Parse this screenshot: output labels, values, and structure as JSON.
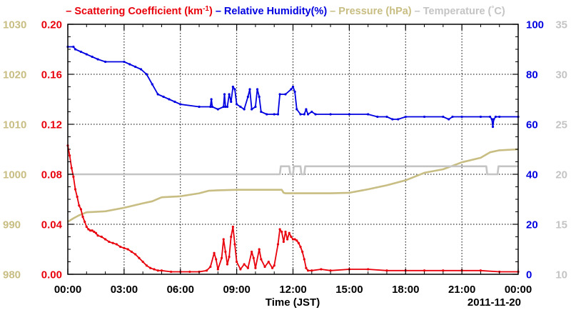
{
  "chart_data": {
    "type": "line",
    "xlabel": "Time (JST)",
    "date_label": "2011-11-20",
    "x_ticks": [
      "00:00",
      "03:00",
      "06:00",
      "09:00",
      "12:00",
      "15:00",
      "18:00",
      "21:00",
      "00:00"
    ],
    "xlim_hours": [
      0,
      24
    ],
    "grid": true,
    "legend": {
      "placement": "top",
      "items": [
        {
          "label": "Scattering Coefficient (km",
          "sup": "-1",
          "suffix": ")",
          "color": "#e8000b"
        },
        {
          "label": "Relative Humidity(%)",
          "color": "#0000e0"
        },
        {
          "label": "Pressure (hPa)",
          "color": "#c8bd82"
        },
        {
          "label": "Temperature (",
          "sup": "°",
          "suffix": "C)",
          "color": "#c4c4c4"
        }
      ],
      "dash": "–"
    },
    "axes": {
      "pressure": {
        "side": "left-outer",
        "color": "#c8bd82",
        "ylim": [
          980,
          1030
        ],
        "ticks": [
          "980",
          "990",
          "1000",
          "1010",
          "1020",
          "1030"
        ]
      },
      "scattering": {
        "side": "left-inner",
        "color": "#e8000b",
        "ylim": [
          0,
          0.2
        ],
        "ticks": [
          "0.00",
          "0.04",
          "0.08",
          "0.12",
          "0.16",
          "0.20"
        ]
      },
      "humidity": {
        "side": "right-inner",
        "color": "#0000e0",
        "ylim": [
          0,
          100
        ],
        "ticks": [
          "0",
          "20",
          "40",
          "60",
          "80",
          "100"
        ]
      },
      "temperature": {
        "side": "right-outer",
        "color": "#c4c4c4",
        "ylim": [
          10,
          35
        ],
        "ticks": [
          "10",
          "15",
          "20",
          "25",
          "30",
          "35"
        ]
      }
    },
    "series": [
      {
        "name": "Scattering Coefficient (km-1)",
        "axis": "scattering",
        "color": "#e8000b",
        "markers": true,
        "points": [
          [
            0.0,
            0.103
          ],
          [
            0.1,
            0.095
          ],
          [
            0.2,
            0.085
          ],
          [
            0.3,
            0.078
          ],
          [
            0.4,
            0.068
          ],
          [
            0.5,
            0.062
          ],
          [
            0.6,
            0.055
          ],
          [
            0.7,
            0.052
          ],
          [
            0.8,
            0.046
          ],
          [
            0.9,
            0.042
          ],
          [
            1.0,
            0.038
          ],
          [
            1.1,
            0.036
          ],
          [
            1.2,
            0.035
          ],
          [
            1.3,
            0.035
          ],
          [
            1.4,
            0.034
          ],
          [
            1.5,
            0.033
          ],
          [
            1.6,
            0.031
          ],
          [
            1.8,
            0.03
          ],
          [
            2.0,
            0.028
          ],
          [
            2.2,
            0.026
          ],
          [
            2.4,
            0.025
          ],
          [
            2.6,
            0.024
          ],
          [
            2.8,
            0.022
          ],
          [
            3.0,
            0.021
          ],
          [
            3.2,
            0.02
          ],
          [
            3.4,
            0.018
          ],
          [
            3.6,
            0.016
          ],
          [
            3.8,
            0.013
          ],
          [
            4.0,
            0.01
          ],
          [
            4.2,
            0.007
          ],
          [
            4.4,
            0.005
          ],
          [
            4.6,
            0.004
          ],
          [
            4.8,
            0.003
          ],
          [
            5.0,
            0.003
          ],
          [
            5.5,
            0.002
          ],
          [
            6.0,
            0.002
          ],
          [
            6.5,
            0.002
          ],
          [
            7.0,
            0.002
          ],
          [
            7.4,
            0.003
          ],
          [
            7.6,
            0.006
          ],
          [
            7.8,
            0.017
          ],
          [
            7.9,
            0.012
          ],
          [
            8.0,
            0.004
          ],
          [
            8.2,
            0.013
          ],
          [
            8.3,
            0.028
          ],
          [
            8.4,
            0.018
          ],
          [
            8.5,
            0.008
          ],
          [
            8.6,
            0.014
          ],
          [
            8.7,
            0.03
          ],
          [
            8.8,
            0.038
          ],
          [
            8.9,
            0.024
          ],
          [
            9.0,
            0.01
          ],
          [
            9.2,
            0.004
          ],
          [
            9.4,
            0.008
          ],
          [
            9.6,
            0.005
          ],
          [
            9.8,
            0.018
          ],
          [
            9.9,
            0.013
          ],
          [
            10.0,
            0.005
          ],
          [
            10.2,
            0.02
          ],
          [
            10.3,
            0.012
          ],
          [
            10.5,
            0.006
          ],
          [
            10.7,
            0.01
          ],
          [
            10.9,
            0.005
          ],
          [
            11.0,
            0.007
          ],
          [
            11.2,
            0.024
          ],
          [
            11.3,
            0.036
          ],
          [
            11.4,
            0.034
          ],
          [
            11.5,
            0.026
          ],
          [
            11.6,
            0.034
          ],
          [
            11.7,
            0.028
          ],
          [
            11.8,
            0.033
          ],
          [
            11.9,
            0.03
          ],
          [
            12.0,
            0.028
          ],
          [
            12.1,
            0.028
          ],
          [
            12.2,
            0.027
          ],
          [
            12.3,
            0.025
          ],
          [
            12.4,
            0.022
          ],
          [
            12.5,
            0.018
          ],
          [
            12.6,
            0.012
          ],
          [
            12.7,
            0.005
          ],
          [
            12.8,
            0.003
          ],
          [
            13.0,
            0.003
          ],
          [
            13.5,
            0.004
          ],
          [
            14.0,
            0.003
          ],
          [
            15.0,
            0.004
          ],
          [
            16.0,
            0.004
          ],
          [
            17.0,
            0.003
          ],
          [
            18.0,
            0.003
          ],
          [
            19.0,
            0.003
          ],
          [
            20.0,
            0.003
          ],
          [
            21.0,
            0.003
          ],
          [
            22.0,
            0.003
          ],
          [
            23.0,
            0.002
          ],
          [
            24.0,
            0.002
          ]
        ]
      },
      {
        "name": "Relative Humidity(%)",
        "axis": "humidity",
        "color": "#0000e0",
        "markers": true,
        "points": [
          [
            0.0,
            91
          ],
          [
            0.3,
            91
          ],
          [
            0.4,
            90
          ],
          [
            0.7,
            89
          ],
          [
            1.0,
            88
          ],
          [
            1.3,
            87
          ],
          [
            1.6,
            86
          ],
          [
            2.0,
            85
          ],
          [
            3.0,
            85
          ],
          [
            3.3,
            84
          ],
          [
            3.6,
            83
          ],
          [
            3.9,
            82
          ],
          [
            4.2,
            80
          ],
          [
            4.5,
            76
          ],
          [
            4.8,
            72
          ],
          [
            5.1,
            71
          ],
          [
            5.4,
            70
          ],
          [
            5.7,
            69
          ],
          [
            6.0,
            68
          ],
          [
            7.0,
            67
          ],
          [
            7.6,
            67
          ],
          [
            7.65,
            70
          ],
          [
            7.7,
            67
          ],
          [
            8.0,
            66
          ],
          [
            8.3,
            67
          ],
          [
            8.35,
            72
          ],
          [
            8.4,
            67
          ],
          [
            8.5,
            67
          ],
          [
            8.6,
            72
          ],
          [
            8.7,
            69
          ],
          [
            8.8,
            75
          ],
          [
            8.9,
            74
          ],
          [
            9.0,
            68
          ],
          [
            9.2,
            67
          ],
          [
            9.4,
            66
          ],
          [
            9.6,
            71
          ],
          [
            9.7,
            74
          ],
          [
            9.8,
            66
          ],
          [
            10.0,
            67
          ],
          [
            10.1,
            74
          ],
          [
            10.2,
            71
          ],
          [
            10.3,
            65
          ],
          [
            10.6,
            64
          ],
          [
            11.0,
            64
          ],
          [
            11.2,
            64
          ],
          [
            11.3,
            72
          ],
          [
            11.6,
            72
          ],
          [
            11.9,
            74
          ],
          [
            12.0,
            75
          ],
          [
            12.1,
            73
          ],
          [
            12.2,
            66
          ],
          [
            12.4,
            64
          ],
          [
            12.6,
            64
          ],
          [
            12.7,
            66
          ],
          [
            12.8,
            64
          ],
          [
            13.0,
            65
          ],
          [
            13.2,
            64
          ],
          [
            14.0,
            64
          ],
          [
            15.0,
            64
          ],
          [
            16.0,
            64
          ],
          [
            16.5,
            63
          ],
          [
            17.0,
            63
          ],
          [
            17.3,
            62
          ],
          [
            17.6,
            62
          ],
          [
            18.0,
            63
          ],
          [
            19.0,
            63
          ],
          [
            20.0,
            63
          ],
          [
            20.3,
            62
          ],
          [
            20.5,
            63
          ],
          [
            21.0,
            63
          ],
          [
            22.0,
            63
          ],
          [
            22.5,
            63
          ],
          [
            22.6,
            62
          ],
          [
            22.65,
            59
          ],
          [
            22.7,
            62
          ],
          [
            22.8,
            63
          ],
          [
            23.0,
            63
          ],
          [
            24.0,
            63
          ]
        ]
      },
      {
        "name": "Pressure (hPa)",
        "axis": "pressure",
        "color": "#c8bd82",
        "markers": false,
        "points": [
          [
            0.0,
            990.5
          ],
          [
            0.3,
            991.2
          ],
          [
            0.6,
            991.8
          ],
          [
            1.0,
            992.4
          ],
          [
            2.0,
            992.6
          ],
          [
            3.0,
            993.3
          ],
          [
            4.0,
            994.2
          ],
          [
            4.5,
            994.6
          ],
          [
            5.0,
            995.4
          ],
          [
            6.0,
            995.6
          ],
          [
            7.0,
            996.2
          ],
          [
            7.5,
            996.7
          ],
          [
            8.0,
            996.8
          ],
          [
            9.0,
            996.9
          ],
          [
            10.0,
            996.9
          ],
          [
            11.0,
            996.9
          ],
          [
            11.4,
            996.9
          ],
          [
            11.5,
            996.3
          ],
          [
            11.6,
            996.2
          ],
          [
            12.0,
            996.2
          ],
          [
            13.0,
            996.2
          ],
          [
            14.0,
            996.2
          ],
          [
            15.0,
            996.3
          ],
          [
            16.0,
            997.0
          ],
          [
            17.0,
            997.8
          ],
          [
            18.0,
            998.8
          ],
          [
            19.0,
            1000.3
          ],
          [
            20.0,
            1001.0
          ],
          [
            21.0,
            1002.4
          ],
          [
            22.0,
            1003.3
          ],
          [
            22.5,
            1004.4
          ],
          [
            23.0,
            1004.8
          ],
          [
            24.0,
            1005.0
          ]
        ]
      },
      {
        "name": "Temperature (°C)",
        "axis": "temperature",
        "color": "#c4c4c4",
        "markers": false,
        "points": [
          [
            0.0,
            20.0
          ],
          [
            11.3,
            20.0
          ],
          [
            11.35,
            20.8
          ],
          [
            11.8,
            20.8
          ],
          [
            11.85,
            20.0
          ],
          [
            12.0,
            20.0
          ],
          [
            12.05,
            20.8
          ],
          [
            12.4,
            20.8
          ],
          [
            12.45,
            20.0
          ],
          [
            12.6,
            20.0
          ],
          [
            12.65,
            20.8
          ],
          [
            22.3,
            20.8
          ],
          [
            22.35,
            20.0
          ],
          [
            22.9,
            20.0
          ],
          [
            22.95,
            20.8
          ],
          [
            24.0,
            20.8
          ]
        ]
      }
    ]
  }
}
